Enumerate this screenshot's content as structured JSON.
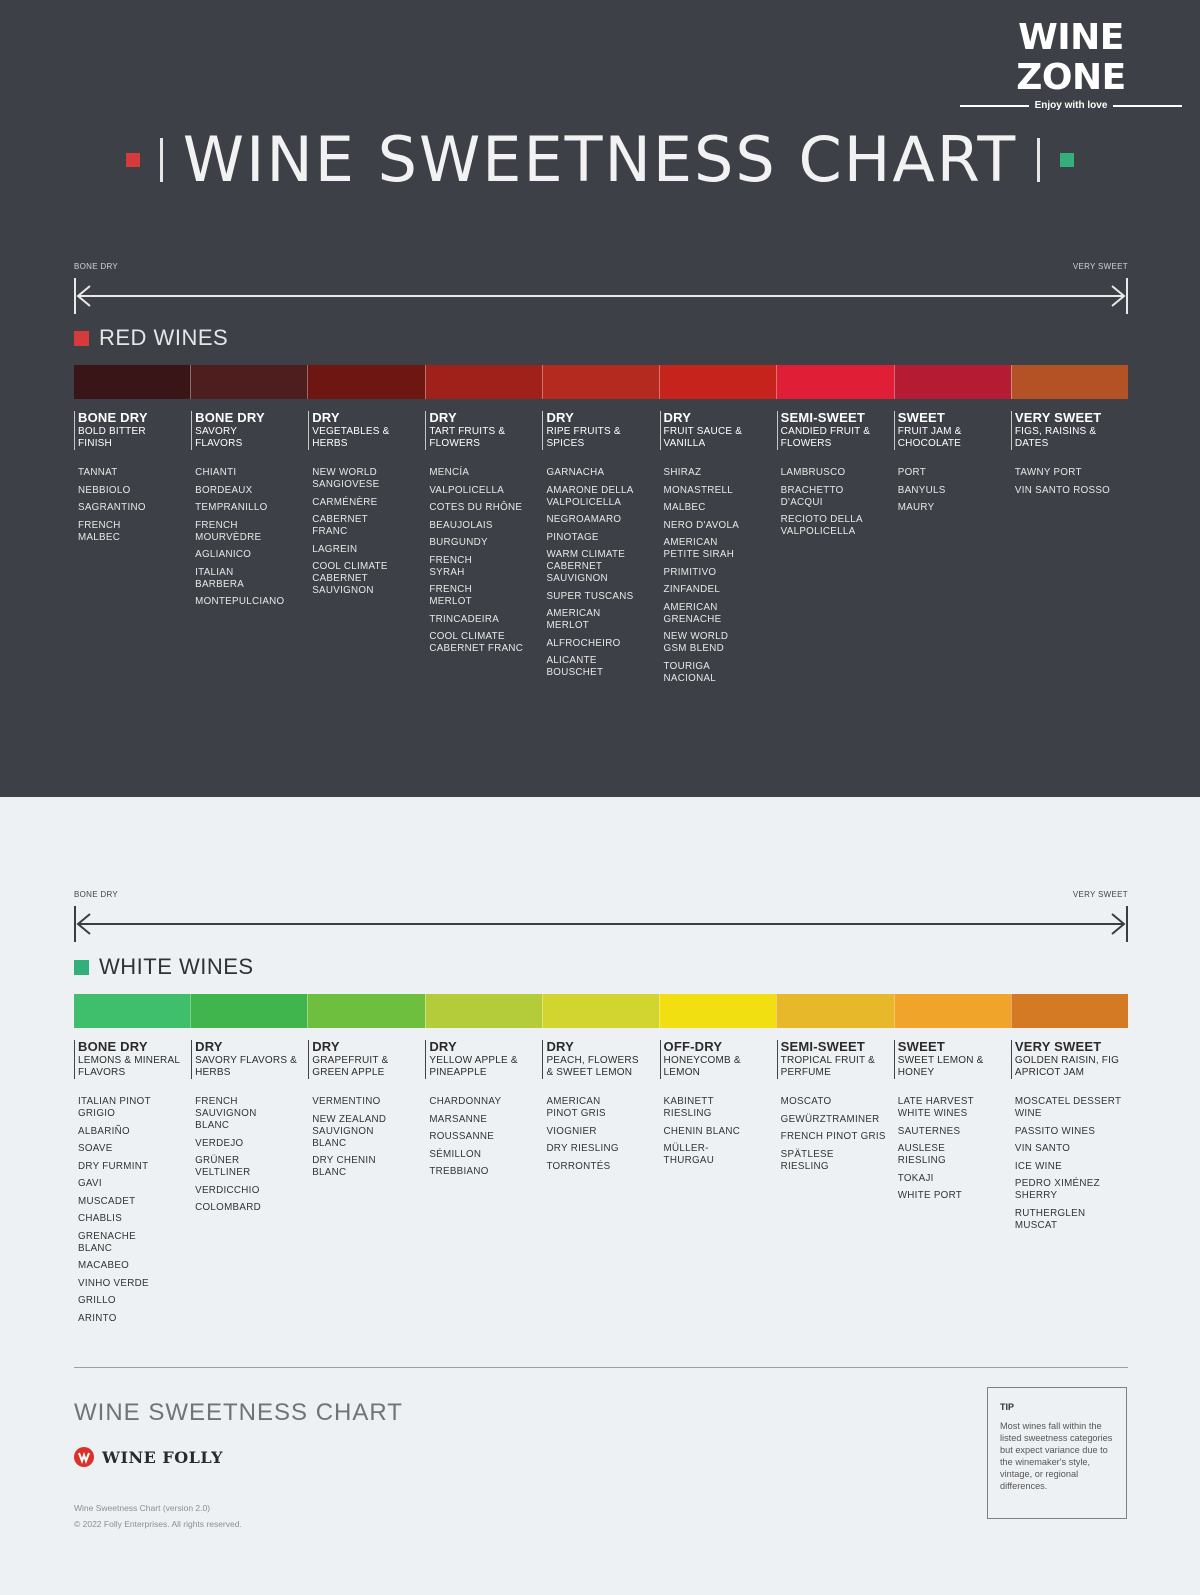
{
  "brand": {
    "title": "WINE ZONE",
    "tagline": "Enjoy with love"
  },
  "main_title": "WINE SWEETNESS CHART",
  "scale": {
    "left": "BONE DRY",
    "right": "VERY SWEET"
  },
  "colors": {
    "top_bg": "#3d4046",
    "bottom_bg": "#eef1f3",
    "red_accent": "#d63a3a",
    "green_accent": "#33b07a"
  },
  "red": {
    "title": "RED WINES",
    "band_colors": [
      "#3a1518",
      "#4e1e1e",
      "#6e1712",
      "#a02119",
      "#b42a1f",
      "#c7231d",
      "#e01e36",
      "#b51c34",
      "#b35225"
    ],
    "columns": [
      {
        "level": "BONE DRY",
        "desc": "BOLD BITTER\nFINISH",
        "wines": [
          "TANNAT",
          "NEBBIOLO",
          "SAGRANTINO",
          "FRENCH\nMALBEC"
        ]
      },
      {
        "level": "BONE DRY",
        "desc": "SAVORY\nFLAVORS",
        "wines": [
          "CHIANTI",
          "BORDEAUX",
          "TEMPRANILLO",
          "FRENCH\nMOURVÈDRE",
          "AGLIANICO",
          "ITALIAN\nBARBERA",
          "MONTEPULCIANO"
        ]
      },
      {
        "level": "DRY",
        "desc": "VEGETABLES &\nHERBS",
        "wines": [
          "NEW WORLD\nSANGIOVESE",
          "CARMÉNÈRE",
          "CABERNET\nFRANC",
          "LAGREIN",
          "COOL CLIMATE\nCABERNET\nSAUVIGNON"
        ]
      },
      {
        "level": "DRY",
        "desc": "TART FRUITS &\nFLOWERS",
        "wines": [
          "MENCÍA",
          "VALPOLICELLA",
          "COTES DU RHÔNE",
          "BEAUJOLAIS",
          "BURGUNDY",
          "FRENCH\nSYRAH",
          "FRENCH\nMERLOT",
          "TRINCADEIRA",
          "COOL CLIMATE\nCABERNET FRANC"
        ]
      },
      {
        "level": "DRY",
        "desc": "RIPE FRUITS &\nSPICES",
        "wines": [
          "GARNACHA",
          "AMARONE DELLA\nVALPOLICELLA",
          "NEGROAMARO",
          "PINOTAGE",
          "WARM CLIMATE\nCABERNET\nSAUVIGNON",
          "SUPER TUSCANS",
          "AMERICAN\nMERLOT",
          "ALFROCHEIRO",
          "ALICANTE\nBOUSCHET"
        ]
      },
      {
        "level": "DRY",
        "desc": "FRUIT SAUCE &\nVANILLA",
        "wines": [
          "SHIRAZ",
          "MONASTRELL",
          "MALBEC",
          "NERO D'AVOLA",
          "AMERICAN\nPETITE SIRAH",
          "PRIMITIVO",
          "ZINFANDEL",
          "AMERICAN\nGRENACHE",
          "NEW WORLD\nGSM BLEND",
          "TOURIGA\nNACIONAL"
        ]
      },
      {
        "level": "SEMI-SWEET",
        "desc": "CANDIED FRUIT &\nFLOWERS",
        "wines": [
          "LAMBRUSCO",
          "BRACHETTO\nD'ACQUI",
          "RECIOTO DELLA\nVALPOLICELLA"
        ]
      },
      {
        "level": "SWEET",
        "desc": "FRUIT JAM &\nCHOCOLATE",
        "wines": [
          "PORT",
          "BANYULS",
          "MAURY"
        ]
      },
      {
        "level": "VERY SWEET",
        "desc": "FIGS, RAISINS &\nDATES",
        "wines": [
          "TAWNY PORT",
          "VIN SANTO ROSSO"
        ]
      }
    ]
  },
  "white": {
    "title": "WHITE WINES",
    "band_colors": [
      "#3fbf6c",
      "#40b54e",
      "#6fbf3f",
      "#b5cc3a",
      "#d2d52f",
      "#f1df12",
      "#e7b82a",
      "#f0a42a",
      "#d47a25"
    ],
    "columns": [
      {
        "level": "BONE DRY",
        "desc": "LEMONS & MINERAL\nFLAVORS",
        "wines": [
          "ITALIAN PINOT\nGRIGIO",
          "ALBARIÑO",
          "SOAVE",
          "DRY FURMINT",
          "GAVI",
          "MUSCADET",
          "CHABLIS",
          "GRENACHE\nBLANC",
          "MACABEO",
          "VINHO VERDE",
          "GRILLO",
          "ARINTO"
        ]
      },
      {
        "level": "DRY",
        "desc": "SAVORY FLAVORS &\nHERBS",
        "wines": [
          "FRENCH\nSAUVIGNON\nBLANC",
          "VERDEJO",
          "GRÜNER\nVELTLINER",
          "VERDICCHIO",
          "COLOMBARD"
        ]
      },
      {
        "level": "DRY",
        "desc": "GRAPEFRUIT &\nGREEN APPLE",
        "wines": [
          "VERMENTINO",
          "NEW ZEALAND\nSAUVIGNON\nBLANC",
          "DRY CHENIN\nBLANC"
        ]
      },
      {
        "level": "DRY",
        "desc": "YELLOW APPLE &\nPINEAPPLE",
        "wines": [
          "CHARDONNAY",
          "MARSANNE",
          "ROUSSANNE",
          "SÉMILLON",
          "TREBBIANO"
        ]
      },
      {
        "level": "DRY",
        "desc": "PEACH, FLOWERS\n& SWEET LEMON",
        "wines": [
          "AMERICAN\nPINOT GRIS",
          "VIOGNIER",
          "DRY RIESLING",
          "TORRONTÉS"
        ]
      },
      {
        "level": "OFF-DRY",
        "desc": "HONEYCOMB &\nLEMON",
        "wines": [
          "KABINETT\nRIESLING",
          "CHENIN BLANC",
          "MÜLLER-\nTHURGAU"
        ]
      },
      {
        "level": "SEMI-SWEET",
        "desc": "TROPICAL FRUIT &\nPERFUME",
        "wines": [
          "MOSCATO",
          "GEWÜRZTRAMINER",
          "FRENCH PINOT GRIS",
          "SPÄTLESE\nRIESLING"
        ]
      },
      {
        "level": "SWEET",
        "desc": "SWEET LEMON &\nHONEY",
        "wines": [
          "LATE HARVEST\nWHITE WINES",
          "SAUTERNES",
          "AUSLESE\nRIESLING",
          "TOKAJI",
          "WHITE PORT"
        ]
      },
      {
        "level": "VERY SWEET",
        "desc": "GOLDEN RAISIN, FIG\nAPRICOT JAM",
        "wines": [
          "MOSCATEL DESSERT\nWINE",
          "PASSITO WINES",
          "VIN SANTO",
          "ICE WINE",
          "PEDRO XIMÉNEZ\nSHERRY",
          "RUTHERGLEN\nMUSCAT"
        ]
      }
    ]
  },
  "footer": {
    "title": "WINE SWEETNESS CHART",
    "publisher": "WINE FOLLY",
    "version": "Wine Sweetness Chart (version 2.0)",
    "copyright": "© 2022 Folly Enterprises. All rights reserved.",
    "tip_heading": "TIP",
    "tip_text": "Most wines fall within the listed sweetness categories but expect variance due to the winemaker's style, vintage, or regional differences."
  }
}
